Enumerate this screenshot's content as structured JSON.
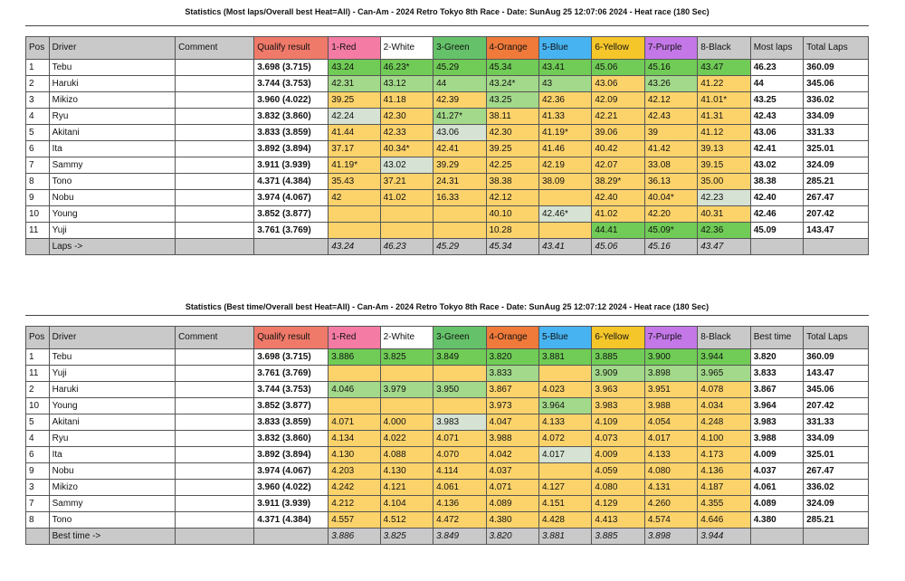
{
  "top": {
    "title": "Statistics (Most laps/Overall best Heat=All) - Can-Am - 2024 Retro Tokyo 8th Race - Date: SunAug 25 12:07:06 2024 - Heat race (180 Sec)",
    "headers": [
      "Pos",
      "Driver",
      "Comment",
      "Qualify result",
      "1-Red",
      "2-White",
      "3-Green",
      "4-Orange",
      "5-Blue",
      "6-Yellow",
      "7-Purple",
      "8-Black",
      "Most laps",
      "Total Laps"
    ],
    "rows": [
      {
        "cells": [
          "1",
          "Tebu",
          "",
          "3.698 (3.715)",
          "43.24",
          "46.23*",
          "45.29",
          "45.34",
          "43.41",
          "45.06",
          "45.16",
          "43.47",
          "46.23",
          "360.09"
        ],
        "colors": [
          "w",
          "w",
          "w",
          "w",
          "g",
          "g",
          "g",
          "g",
          "g",
          "g",
          "g",
          "g",
          "w",
          "w"
        ]
      },
      {
        "cells": [
          "2",
          "Haruki",
          "",
          "3.744 (3.753)",
          "42.31",
          "43.12",
          "44",
          "43.24*",
          "43",
          "43.06",
          "43.26",
          "41.22",
          "44",
          "345.06"
        ],
        "colors": [
          "w",
          "w",
          "w",
          "w",
          "lg",
          "lg",
          "lg",
          "lg",
          "lg",
          "y",
          "lg",
          "y",
          "w",
          "w"
        ]
      },
      {
        "cells": [
          "3",
          "Mikizo",
          "",
          "3.960 (4.022)",
          "39.25",
          "41.18",
          "42.39",
          "43.25",
          "42.36",
          "42.09",
          "42.12",
          "41.01*",
          "43.25",
          "336.02"
        ],
        "colors": [
          "w",
          "w",
          "w",
          "w",
          "y",
          "y",
          "y",
          "lg",
          "y",
          "y",
          "y",
          "y",
          "w",
          "w"
        ]
      },
      {
        "cells": [
          "4",
          "Ryu",
          "",
          "3.832 (3.860)",
          "42.24",
          "42.30",
          "41.27*",
          "38.11",
          "41.33",
          "42.21",
          "42.43",
          "41.31",
          "42.43",
          "334.09"
        ],
        "colors": [
          "w",
          "w",
          "w",
          "w",
          "gr",
          "y",
          "lg",
          "y",
          "y",
          "y",
          "y",
          "y",
          "w",
          "w"
        ]
      },
      {
        "cells": [
          "5",
          "Akitani",
          "",
          "3.833 (3.859)",
          "41.44",
          "42.33",
          "43.06",
          "42.30",
          "41.19*",
          "39.06",
          "39",
          "41.12",
          "43.06",
          "331.33"
        ],
        "colors": [
          "w",
          "w",
          "w",
          "w",
          "y",
          "y",
          "gr",
          "y",
          "y",
          "y",
          "y",
          "y",
          "w",
          "w"
        ]
      },
      {
        "cells": [
          "6",
          "Ita",
          "",
          "3.892 (3.894)",
          "37.17",
          "40.34*",
          "42.41",
          "39.25",
          "41.46",
          "40.42",
          "41.42",
          "39.13",
          "42.41",
          "325.01"
        ],
        "colors": [
          "w",
          "w",
          "w",
          "w",
          "y",
          "y",
          "y",
          "y",
          "y",
          "y",
          "y",
          "y",
          "w",
          "w"
        ]
      },
      {
        "cells": [
          "7",
          "Sammy",
          "",
          "3.911 (3.939)",
          "41.19*",
          "43.02",
          "39.29",
          "42.25",
          "42.19",
          "42.07",
          "33.08",
          "39.15",
          "43.02",
          "324.09"
        ],
        "colors": [
          "w",
          "w",
          "w",
          "w",
          "y",
          "gr",
          "y",
          "y",
          "y",
          "y",
          "y",
          "y",
          "w",
          "w"
        ]
      },
      {
        "cells": [
          "8",
          "Tono",
          "",
          "4.371 (4.384)",
          "35.43",
          "37.21",
          "24.31",
          "38.38",
          "38.09",
          "38.29*",
          "36.13",
          "35.00",
          "38.38",
          "285.21"
        ],
        "colors": [
          "w",
          "w",
          "w",
          "w",
          "y",
          "y",
          "y",
          "y",
          "y",
          "y",
          "y",
          "y",
          "w",
          "w"
        ]
      },
      {
        "cells": [
          "9",
          "Nobu",
          "",
          "3.974 (4.067)",
          "42",
          "41.02",
          "16.33",
          "42.12",
          "",
          "42.40",
          "40.04*",
          "42.23",
          "42.40",
          "267.47"
        ],
        "colors": [
          "w",
          "w",
          "w",
          "w",
          "y",
          "y",
          "y",
          "y",
          "y",
          "y",
          "y",
          "gr",
          "w",
          "w"
        ]
      },
      {
        "cells": [
          "10",
          "Young",
          "",
          "3.852 (3.877)",
          "",
          "",
          "",
          "40.10",
          "42.46*",
          "41.02",
          "42.20",
          "40.31",
          "42.46",
          "207.42"
        ],
        "colors": [
          "w",
          "w",
          "w",
          "w",
          "y",
          "y",
          "y",
          "y",
          "gr",
          "y",
          "y",
          "y",
          "w",
          "w"
        ]
      },
      {
        "cells": [
          "11",
          "Yuji",
          "",
          "3.761 (3.769)",
          "",
          "",
          "",
          "10.28",
          "",
          "44.41",
          "45.09*",
          "42.36",
          "45.09",
          "143.47"
        ],
        "colors": [
          "w",
          "w",
          "w",
          "w",
          "y",
          "y",
          "y",
          "y",
          "y",
          "g",
          "g",
          "g",
          "w",
          "w"
        ]
      }
    ],
    "footer": [
      "",
      "Laps ->",
      "",
      "",
      "43.24",
      "46.23",
      "45.29",
      "45.34",
      "43.41",
      "45.06",
      "45.16",
      "43.47",
      "",
      ""
    ]
  },
  "bottom": {
    "title": "Statistics (Best time/Overall best Heat=All) - Can-Am - 2024 Retro Tokyo 8th Race - Date: SunAug 25 12:07:12 2024 - Heat race (180 Sec)",
    "headers": [
      "Pos",
      "Driver",
      "Comment",
      "Qualify result",
      "1-Red",
      "2-White",
      "3-Green",
      "4-Orange",
      "5-Blue",
      "6-Yellow",
      "7-Purple",
      "8-Black",
      "Best time",
      "Total Laps"
    ],
    "rows": [
      {
        "cells": [
          "1",
          "Tebu",
          "",
          "3.698 (3.715)",
          "3.886",
          "3.825",
          "3.849",
          "3.820",
          "3.881",
          "3.885",
          "3.900",
          "3.944",
          "3.820",
          "360.09"
        ],
        "colors": [
          "w",
          "w",
          "w",
          "w",
          "g",
          "g",
          "g",
          "g",
          "g",
          "g",
          "g",
          "g",
          "w",
          "w"
        ]
      },
      {
        "cells": [
          "11",
          "Yuji",
          "",
          "3.761 (3.769)",
          "",
          "",
          "",
          "3.833",
          "",
          "3.909",
          "3.898",
          "3.965",
          "3.833",
          "143.47"
        ],
        "colors": [
          "w",
          "w",
          "w",
          "w",
          "y",
          "y",
          "y",
          "lg",
          "y",
          "lg",
          "lg",
          "lg",
          "w",
          "w"
        ]
      },
      {
        "cells": [
          "2",
          "Haruki",
          "",
          "3.744 (3.753)",
          "4.046",
          "3.979",
          "3.950",
          "3.867",
          "4.023",
          "3.963",
          "3.951",
          "4.078",
          "3.867",
          "345.06"
        ],
        "colors": [
          "w",
          "w",
          "w",
          "w",
          "lg",
          "lg",
          "lg",
          "y",
          "y",
          "y",
          "y",
          "y",
          "w",
          "w"
        ]
      },
      {
        "cells": [
          "10",
          "Young",
          "",
          "3.852 (3.877)",
          "",
          "",
          "",
          "3.973",
          "3.964",
          "3.983",
          "3.988",
          "4.034",
          "3.964",
          "207.42"
        ],
        "colors": [
          "w",
          "w",
          "w",
          "w",
          "y",
          "y",
          "y",
          "y",
          "lg",
          "y",
          "y",
          "y",
          "w",
          "w"
        ]
      },
      {
        "cells": [
          "5",
          "Akitani",
          "",
          "3.833 (3.859)",
          "4.071",
          "4.000",
          "3.983",
          "4.047",
          "4.133",
          "4.109",
          "4.054",
          "4.248",
          "3.983",
          "331.33"
        ],
        "colors": [
          "w",
          "w",
          "w",
          "w",
          "y",
          "y",
          "gr",
          "y",
          "y",
          "y",
          "y",
          "y",
          "w",
          "w"
        ]
      },
      {
        "cells": [
          "4",
          "Ryu",
          "",
          "3.832 (3.860)",
          "4.134",
          "4.022",
          "4.071",
          "3.988",
          "4.072",
          "4.073",
          "4.017",
          "4.100",
          "3.988",
          "334.09"
        ],
        "colors": [
          "w",
          "w",
          "w",
          "w",
          "y",
          "y",
          "y",
          "y",
          "y",
          "y",
          "y",
          "y",
          "w",
          "w"
        ]
      },
      {
        "cells": [
          "6",
          "Ita",
          "",
          "3.892 (3.894)",
          "4.130",
          "4.088",
          "4.070",
          "4.042",
          "4.017",
          "4.009",
          "4.133",
          "4.173",
          "4.009",
          "325.01"
        ],
        "colors": [
          "w",
          "w",
          "w",
          "w",
          "y",
          "y",
          "y",
          "y",
          "gr",
          "y",
          "y",
          "y",
          "w",
          "w"
        ]
      },
      {
        "cells": [
          "9",
          "Nobu",
          "",
          "3.974 (4.067)",
          "4.203",
          "4.130",
          "4.114",
          "4.037",
          "",
          "4.059",
          "4.080",
          "4.136",
          "4.037",
          "267.47"
        ],
        "colors": [
          "w",
          "w",
          "w",
          "w",
          "y",
          "y",
          "y",
          "y",
          "y",
          "y",
          "y",
          "y",
          "w",
          "w"
        ]
      },
      {
        "cells": [
          "3",
          "Mikizo",
          "",
          "3.960 (4.022)",
          "4.242",
          "4.121",
          "4.061",
          "4.071",
          "4.127",
          "4.080",
          "4.131",
          "4.187",
          "4.061",
          "336.02"
        ],
        "colors": [
          "w",
          "w",
          "w",
          "w",
          "y",
          "y",
          "y",
          "y",
          "y",
          "y",
          "y",
          "y",
          "w",
          "w"
        ]
      },
      {
        "cells": [
          "7",
          "Sammy",
          "",
          "3.911 (3.939)",
          "4.212",
          "4.104",
          "4.136",
          "4.089",
          "4.151",
          "4.129",
          "4.260",
          "4.355",
          "4.089",
          "324.09"
        ],
        "colors": [
          "w",
          "w",
          "w",
          "w",
          "y",
          "y",
          "y",
          "y",
          "y",
          "y",
          "y",
          "y",
          "w",
          "w"
        ]
      },
      {
        "cells": [
          "8",
          "Tono",
          "",
          "4.371 (4.384)",
          "4.557",
          "4.512",
          "4.472",
          "4.380",
          "4.428",
          "4.413",
          "4.574",
          "4.646",
          "4.380",
          "285.21"
        ],
        "colors": [
          "w",
          "w",
          "w",
          "w",
          "y",
          "y",
          "y",
          "y",
          "y",
          "y",
          "y",
          "y",
          "w",
          "w"
        ]
      }
    ],
    "footer": [
      "",
      "Best time ->",
      "",
      "",
      "3.886",
      "3.825",
      "3.849",
      "3.820",
      "3.881",
      "3.885",
      "3.898",
      "3.944",
      "",
      ""
    ]
  }
}
